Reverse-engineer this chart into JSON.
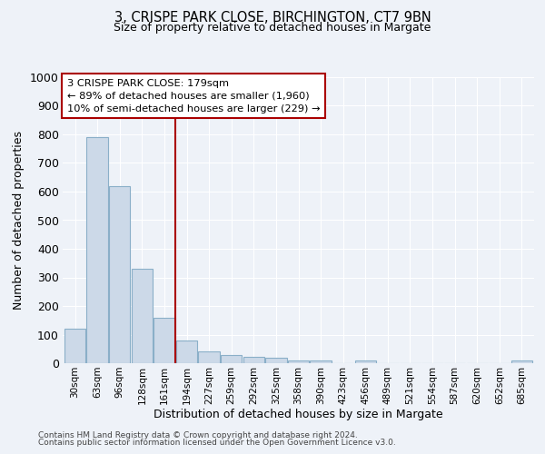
{
  "title1": "3, CRISPE PARK CLOSE, BIRCHINGTON, CT7 9BN",
  "title2": "Size of property relative to detached houses in Margate",
  "xlabel": "Distribution of detached houses by size in Margate",
  "ylabel": "Number of detached properties",
  "bar_labels": [
    "30sqm",
    "63sqm",
    "96sqm",
    "128sqm",
    "161sqm",
    "194sqm",
    "227sqm",
    "259sqm",
    "292sqm",
    "325sqm",
    "358sqm",
    "390sqm",
    "423sqm",
    "456sqm",
    "489sqm",
    "521sqm",
    "554sqm",
    "587sqm",
    "620sqm",
    "652sqm",
    "685sqm"
  ],
  "bar_values": [
    120,
    790,
    620,
    330,
    160,
    80,
    40,
    27,
    22,
    18,
    10,
    8,
    0,
    8,
    0,
    0,
    0,
    0,
    0,
    0,
    8
  ],
  "bar_color": "#ccd9e8",
  "bar_edgecolor": "#8aafc8",
  "vline_color": "#aa0000",
  "annotation_text": "3 CRISPE PARK CLOSE: 179sqm\n← 89% of detached houses are smaller (1,960)\n10% of semi-detached houses are larger (229) →",
  "annotation_box_color": "#ffffff",
  "annotation_border_color": "#aa0000",
  "ylim": [
    0,
    1000
  ],
  "yticks": [
    0,
    100,
    200,
    300,
    400,
    500,
    600,
    700,
    800,
    900,
    1000
  ],
  "footer1": "Contains HM Land Registry data © Crown copyright and database right 2024.",
  "footer2": "Contains public sector information licensed under the Open Government Licence v3.0.",
  "background_color": "#eef2f8",
  "grid_color": "#ffffff"
}
